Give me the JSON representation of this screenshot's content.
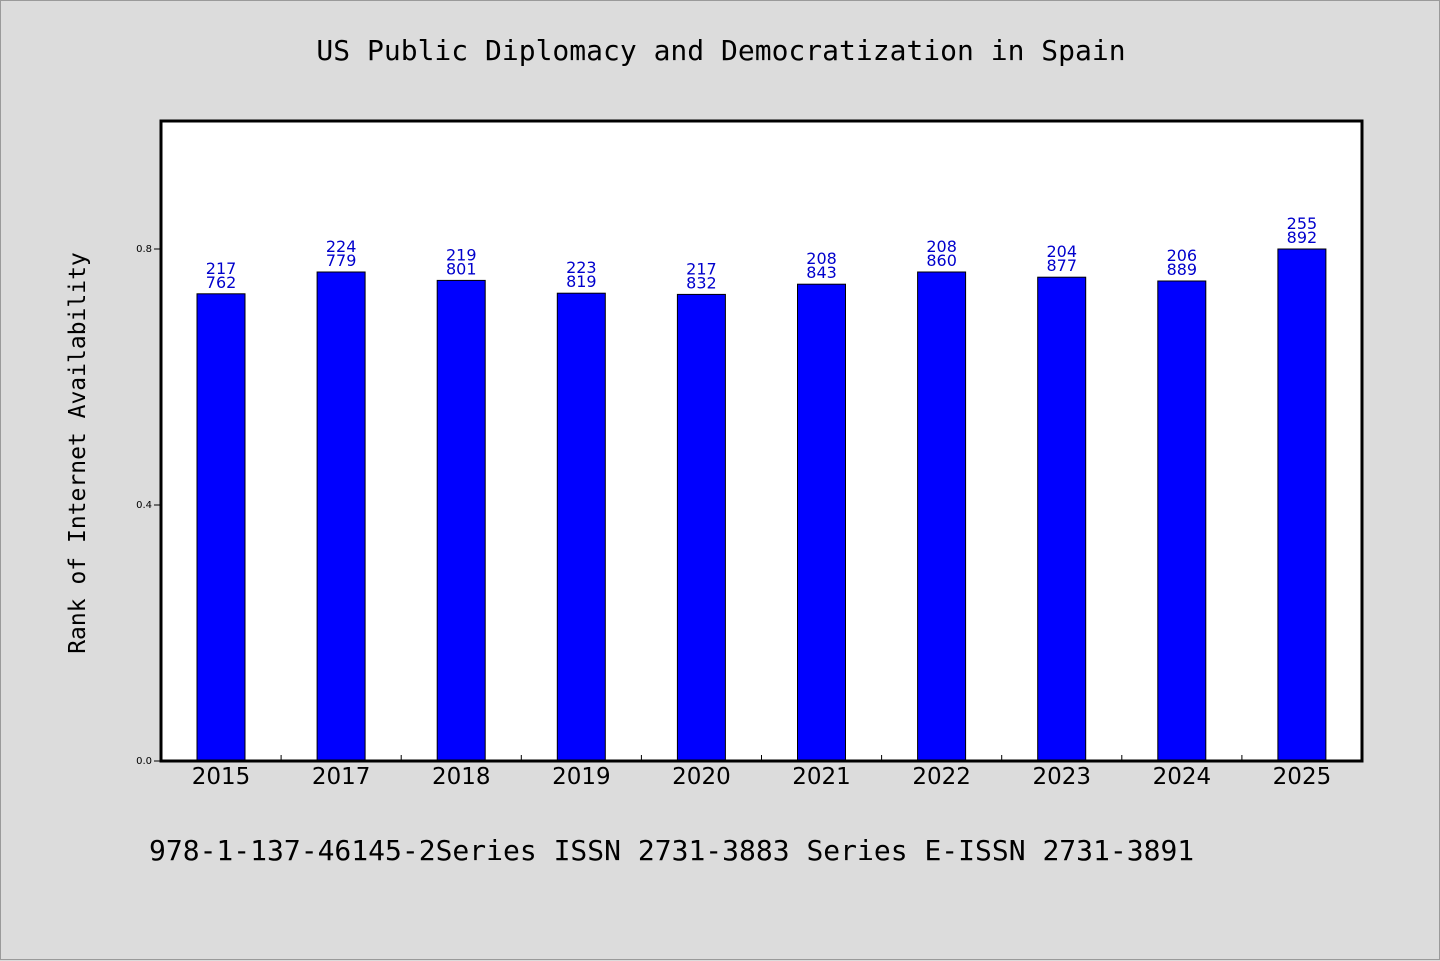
{
  "title": "US Public Diplomacy and Democratization in Spain",
  "footer": "978-1-137-46145-2Series ISSN 2731-3883 Series E-ISSN 2731-3891",
  "chart_data": {
    "type": "bar",
    "title": "US Public Diplomacy and Democratization in Spain",
    "xlabel": "",
    "ylabel": "Rank of Internet Availability",
    "categories": [
      "2015",
      "2017",
      "2018",
      "2019",
      "2020",
      "2021",
      "2022",
      "2023",
      "2024",
      "2025"
    ],
    "values": [
      0.73,
      0.764,
      0.751,
      0.731,
      0.729,
      0.745,
      0.764,
      0.756,
      0.75,
      0.8
    ],
    "bar_labels": [
      [
        "217",
        "762"
      ],
      [
        "224",
        "779"
      ],
      [
        "219",
        "801"
      ],
      [
        "223",
        "819"
      ],
      [
        "217",
        "832"
      ],
      [
        "208",
        "843"
      ],
      [
        "208",
        "860"
      ],
      [
        "204",
        "877"
      ],
      [
        "206",
        "889"
      ],
      [
        "255",
        "892"
      ]
    ],
    "ylim": [
      0,
      1.0
    ],
    "yticks": [
      0.0,
      0.4,
      0.8
    ],
    "ytick_labels": [
      "0.0",
      "0.4",
      "0.8"
    ],
    "grid": false,
    "bar_color": "#0000ff",
    "label_color": "#0000cc"
  }
}
